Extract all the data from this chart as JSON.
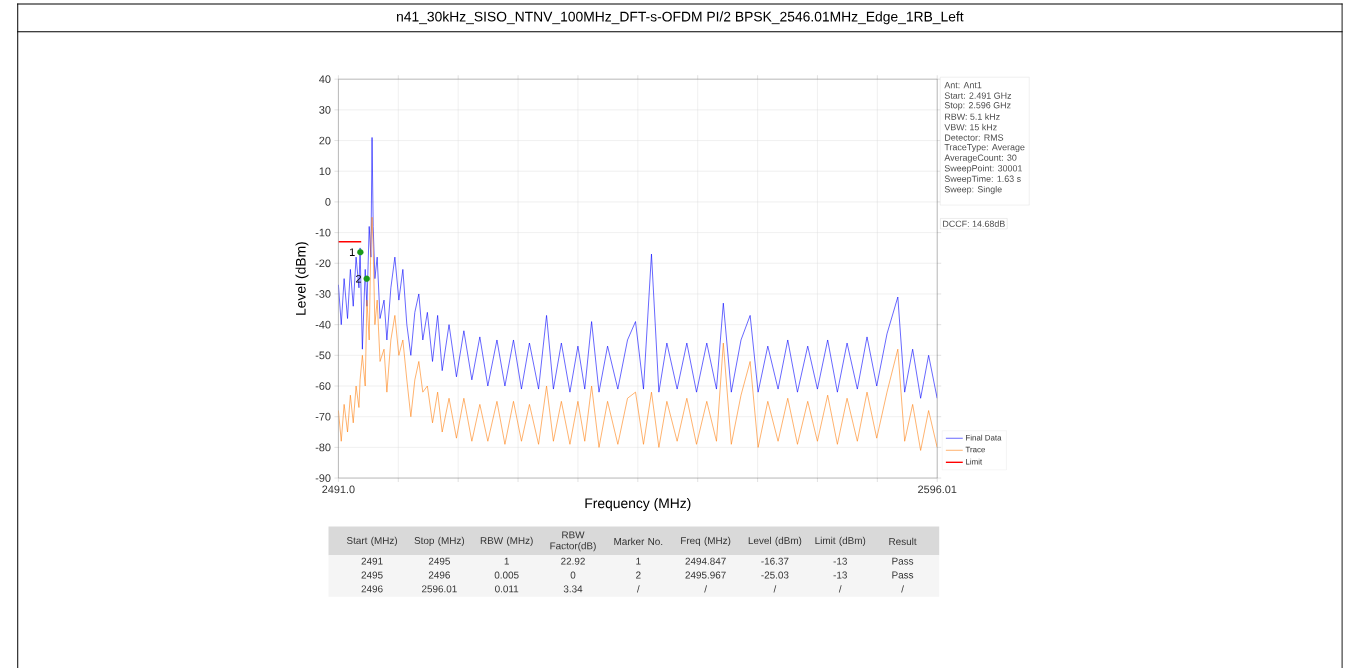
{
  "chart_data": {
    "type": "line",
    "title": "n41_30kHz_SISO_NTNV_100MHz_DFT-s-OFDM PI/2 BPSK_2546.01MHz_Edge_1RB_Left",
    "xlabel": "Frequency (MHz)",
    "ylabel": "Level (dBm)",
    "x": [
      2491.0,
      2491.5,
      2492.0,
      2492.6,
      2493.1,
      2493.6,
      2494.1,
      2494.6,
      2494.8,
      2495.2,
      2495.7,
      2496.0,
      2496.4,
      2496.7,
      2496.9,
      2497.1,
      2497.4,
      2497.8,
      2498.3,
      2499.0,
      2499.5,
      2500.2,
      2500.9,
      2501.6,
      2502.3,
      2503.0,
      2503.7,
      2504.4,
      2505.1,
      2505.8,
      2506.6,
      2507.5,
      2508.4,
      2509.2,
      2510.4,
      2511.7,
      2513.0,
      2514.4,
      2515.8,
      2517.2,
      2518.8,
      2520.2,
      2521.7,
      2523.1,
      2524.5,
      2526.1,
      2527.5,
      2528.7,
      2530.1,
      2531.6,
      2533.0,
      2534.2,
      2535.4,
      2536.7,
      2538.2,
      2540.0,
      2541.7,
      2543.1,
      2544.5,
      2545.9,
      2547.2,
      2548.6,
      2550.4,
      2552.1,
      2553.8,
      2555.6,
      2557.3,
      2558.5,
      2559.9,
      2561.6,
      2563.2,
      2564.6,
      2566.3,
      2568.1,
      2569.8,
      2571.5,
      2573.3,
      2575.0,
      2576.8,
      2578.5,
      2580.2,
      2582.0,
      2583.7,
      2585.4,
      2587.2,
      2589.1,
      2590.3,
      2591.7,
      2593.1,
      2594.5,
      2596.0
    ],
    "series": [
      {
        "name": "Final Data",
        "color": "#0000ff",
        "values": [
          -27,
          -40,
          -25,
          -38,
          -22,
          -34,
          -18,
          -28,
          -15,
          -48,
          -22,
          -34,
          -8,
          -18,
          21,
          -8,
          -25,
          -18,
          -38,
          -32,
          -45,
          -28,
          -18,
          -32,
          -22,
          -40,
          -50,
          -36,
          -30,
          -45,
          -36,
          -52,
          -37,
          -55,
          -40,
          -57,
          -42,
          -58,
          -44,
          -60,
          -45,
          -60,
          -45,
          -61,
          -46,
          -61,
          -37,
          -61,
          -46,
          -62,
          -47,
          -61,
          -39,
          -62,
          -47,
          -61,
          -45,
          -39,
          -61,
          -17,
          -62,
          -46,
          -61,
          -46,
          -62,
          -46,
          -61,
          -33,
          -62,
          -45,
          -37,
          -62,
          -47,
          -61,
          -45,
          -62,
          -47,
          -61,
          -45,
          -62,
          -46,
          -61,
          -44,
          -60,
          -43,
          -31,
          -62,
          -48,
          -64,
          -50,
          -64
        ]
      },
      {
        "name": "Trace",
        "color": "#ff7f0e",
        "values": [
          -68,
          -78,
          -66,
          -75,
          -63,
          -72,
          -60,
          -67,
          -58,
          -50,
          -60,
          -32,
          -45,
          -12,
          -5,
          -15,
          -40,
          -32,
          -52,
          -48,
          -62,
          -45,
          -37,
          -50,
          -45,
          -58,
          -70,
          -58,
          -52,
          -62,
          -60,
          -72,
          -62,
          -75,
          -64,
          -77,
          -64,
          -78,
          -66,
          -78,
          -65,
          -79,
          -65,
          -78,
          -66,
          -79,
          -60,
          -78,
          -65,
          -79,
          -65,
          -78,
          -60,
          -80,
          -65,
          -79,
          -64,
          -62,
          -79,
          -62,
          -80,
          -65,
          -78,
          -64,
          -79,
          -65,
          -78,
          -46,
          -79,
          -63,
          -52,
          -80,
          -65,
          -78,
          -64,
          -79,
          -65,
          -78,
          -63,
          -79,
          -64,
          -78,
          -62,
          -77,
          -62,
          -48,
          -78,
          -66,
          -81,
          -68,
          -80
        ]
      },
      {
        "name": "Limit",
        "color": "#ff0000",
        "x": [
          2491,
          2495
        ],
        "values": [
          -13,
          -13
        ]
      },
      {
        "type": "scatter",
        "color": "#1a9a1a",
        "marker": "circle",
        "x": [
          2494.847,
          2495.967
        ],
        "values": [
          -16.37,
          -25.03
        ]
      }
    ],
    "xlim": [
      2491.0,
      2596.01
    ],
    "xticks": [
      {
        "value": 2491.0,
        "label": "2491.0"
      },
      {
        "value": 2501.501,
        "label": null
      },
      {
        "value": 2512.002,
        "label": null
      },
      {
        "value": 2522.503,
        "label": null
      },
      {
        "value": 2533.004,
        "label": null
      },
      {
        "value": 2543.505,
        "label": null
      },
      {
        "value": 2554.006,
        "label": null
      },
      {
        "value": 2564.507,
        "label": null
      },
      {
        "value": 2575.008,
        "label": null
      },
      {
        "value": 2585.509,
        "label": null
      },
      {
        "value": 2596.01,
        "label": "2596.01"
      }
    ],
    "ylim": [
      -90,
      40
    ],
    "yticks": [
      -90,
      -80,
      -70,
      -60,
      -50,
      -40,
      -30,
      -20,
      -10,
      0,
      10,
      20,
      30,
      40
    ],
    "grid": true,
    "legend": "bottom right",
    "annotations": [
      "Ant: Ant1",
      "Start: 2.491 GHz",
      "Stop: 2.596 GHz",
      "RBW: 5.1 kHz",
      "VBW: 15 kHz",
      "Detector: RMS",
      "TraceType: Average",
      "AverageCount: 30",
      "SweepPoint: 30001",
      "SweepTime: 1.63 s",
      "Sweep: Single",
      "DCCF: 14.68dB",
      "Start (MHz)",
      "Stop (MHz)",
      "RBW (MHz)",
      "RBW Factor(dB)",
      "Marker No.",
      "Freq (MHz)",
      "Level (dBm)",
      "Limit (dBm)",
      "Result",
      "2491",
      "2495",
      "1",
      "22.92",
      "1",
      "2494.847",
      "-16.37",
      "-13",
      "Pass",
      "2495",
      "2496",
      "0.005",
      "0",
      "2",
      "2495.967",
      "-25.03",
      "-13",
      "Pass",
      "2496",
      "2596.01",
      "0.011",
      "3.34",
      "/",
      "/",
      "/",
      "/",
      "/",
      {
        "text": "1",
        "x": 2494.847,
        "y": -16.37
      },
      {
        "text": "2",
        "x": 2495.967,
        "y": -25.03
      }
    ]
  }
}
